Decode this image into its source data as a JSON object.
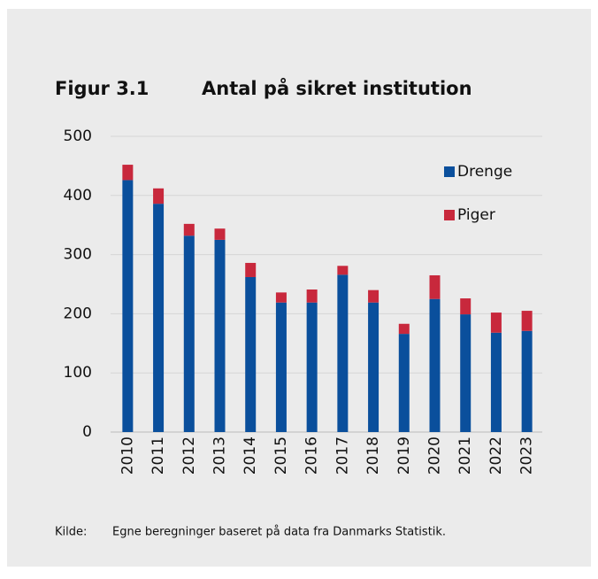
{
  "chart_data": {
    "type": "stacked_bar",
    "figure_label": "Figur 3.1",
    "title": "Antal på sikret institution",
    "categories": [
      "2010",
      "2011",
      "2012",
      "2013",
      "2014",
      "2015",
      "2016",
      "2017",
      "2018",
      "2019",
      "2020",
      "2021",
      "2022",
      "2023"
    ],
    "series": [
      {
        "name": "Drenge",
        "color": "#0a4f9c",
        "values": [
          426,
          386,
          332,
          325,
          262,
          219,
          219,
          266,
          219,
          166,
          225,
          199,
          168,
          171
        ]
      },
      {
        "name": "Piger",
        "color": "#c8283c",
        "values": [
          26,
          26,
          20,
          19,
          24,
          17,
          22,
          15,
          21,
          17,
          40,
          27,
          34,
          34
        ]
      }
    ],
    "ylim": [
      0,
      500
    ],
    "yticks": [
      0,
      100,
      200,
      300,
      400,
      500
    ],
    "grid": true,
    "legend": "upper right",
    "source_label": "Kilde:",
    "source": "Egne beregninger baseret på data fra Danmarks Statistik."
  }
}
